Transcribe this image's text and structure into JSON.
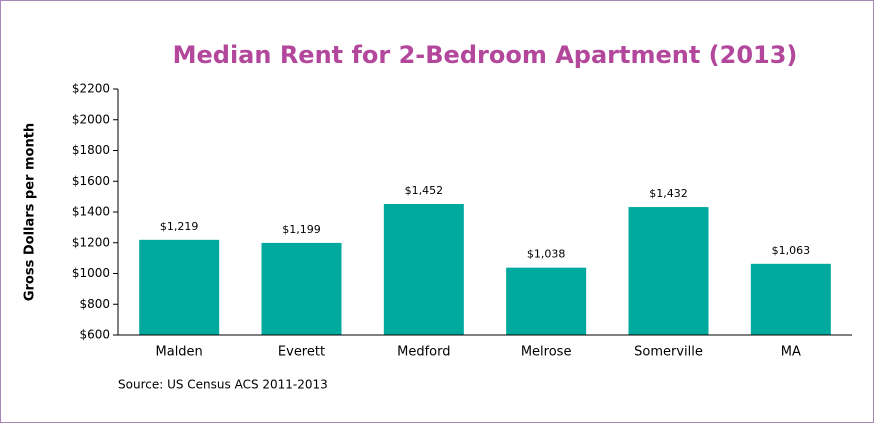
{
  "chart_data": {
    "type": "bar",
    "title": "Median Rent for 2-Bedroom Apartment (2013)",
    "y_label": "Gross Dollars per month",
    "source": "Source: US Census ACS  2011-2013",
    "categories": [
      "Malden",
      "Everett",
      "Medford",
      "Melrose",
      "Somerville",
      "MA"
    ],
    "values": [
      1219,
      1199,
      1452,
      1038,
      1432,
      1063
    ],
    "value_labels": [
      "$1,219",
      "$1,199",
      "$1,452",
      "$1,038",
      "$1,432",
      "$1,063"
    ],
    "color": "#00a99d",
    "ylim": [
      600,
      2200
    ],
    "yticks": [
      {
        "value": 600,
        "label": "$600"
      },
      {
        "value": 800,
        "label": "$800"
      },
      {
        "value": 1000,
        "label": "$1000"
      },
      {
        "value": 1200,
        "label": "$1200"
      },
      {
        "value": 1400,
        "label": "$1400"
      },
      {
        "value": 1600,
        "label": "$1600"
      },
      {
        "value": 1800,
        "label": "$1800"
      },
      {
        "value": 2000,
        "label": "$2000"
      },
      {
        "value": 2200,
        "label": "$2200"
      }
    ],
    "grid": false
  }
}
